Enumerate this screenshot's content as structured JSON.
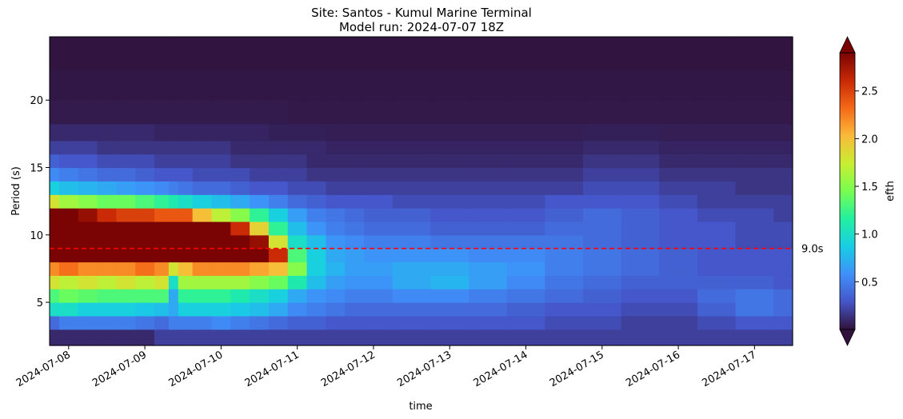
{
  "chart_data": {
    "type": "heatmap",
    "title": "Site: Santos - Kumul Marine Terminal",
    "subtitle": "Model run: 2024-07-07 18Z",
    "xlabel": "time",
    "ylabel": "Period (s)",
    "colorbar_label": "efth",
    "colormap": "turbo",
    "xlim": [
      "2024-07-07 18:00",
      "2024-07-17 12:00"
    ],
    "ylim": [
      1.8,
      24.7
    ],
    "x_ticks": [
      "2024-07-08",
      "2024-07-09",
      "2024-07-10",
      "2024-07-11",
      "2024-07-12",
      "2024-07-13",
      "2024-07-14",
      "2024-07-15",
      "2024-07-16",
      "2024-07-17"
    ],
    "y_ticks": [
      5,
      10,
      15,
      20
    ],
    "colorbar_range": [
      0,
      2.9
    ],
    "colorbar_ticks": [
      0.5,
      1.0,
      1.5,
      2.0,
      2.5
    ],
    "colorbar_tick_labels": [
      "0.5",
      "1.0",
      "1.5",
      "2.0",
      "2.5"
    ],
    "y_tick_labels": [
      "5",
      "10",
      "15",
      "20"
    ],
    "reference_line": {
      "value": 9.0,
      "label": "9.0s",
      "color": "#ff0000",
      "style": "dashed"
    },
    "x_cells": [
      "2024-07-07 18:00",
      "2024-07-08 00:00",
      "2024-07-08 06:00",
      "2024-07-08 12:00",
      "2024-07-08 18:00",
      "2024-07-09 00:00",
      "2024-07-09 06:00",
      "2024-07-09 09:00",
      "2024-07-09 12:00",
      "2024-07-09 18:00",
      "2024-07-10 00:00",
      "2024-07-10 06:00",
      "2024-07-10 12:00",
      "2024-07-10 18:00",
      "2024-07-11 00:00",
      "2024-07-11 06:00",
      "2024-07-11 12:00",
      "2024-07-11 18:00",
      "2024-07-12 00:00",
      "2024-07-12 12:00",
      "2024-07-13 00:00",
      "2024-07-13 12:00",
      "2024-07-14 00:00",
      "2024-07-14 12:00",
      "2024-07-15 00:00",
      "2024-07-15 12:00",
      "2024-07-16 00:00",
      "2024-07-16 12:00",
      "2024-07-17 00:00",
      "2024-07-17 12:00"
    ],
    "y_cells": [
      2.5,
      3.5,
      4.5,
      5.5,
      6.5,
      7.5,
      8.5,
      9.5,
      10.5,
      11.5,
      12.5,
      13.5,
      14.5,
      15.5,
      16.5,
      17.5,
      19,
      21,
      23.5
    ],
    "values": [
      [
        0.1,
        0.1,
        0.1,
        0.1,
        0.1,
        0.1,
        0.2,
        0.2,
        0.2,
        0.2,
        0.2,
        0.2,
        0.2,
        0.2,
        0.2,
        0.2,
        0.2,
        0.2,
        0.2,
        0.2,
        0.2,
        0.2,
        0.2,
        0.2,
        0.2,
        0.2,
        0.2,
        0.2,
        0.2,
        0.2
      ],
      [
        0.4,
        0.5,
        0.5,
        0.5,
        0.5,
        0.45,
        0.4,
        0.5,
        0.5,
        0.5,
        0.55,
        0.5,
        0.45,
        0.4,
        0.35,
        0.35,
        0.3,
        0.3,
        0.3,
        0.3,
        0.3,
        0.3,
        0.3,
        0.25,
        0.25,
        0.2,
        0.2,
        0.25,
        0.3,
        0.3
      ],
      [
        1.0,
        1.0,
        0.9,
        0.9,
        0.9,
        0.85,
        0.8,
        0.7,
        0.9,
        0.9,
        0.9,
        0.85,
        0.8,
        0.7,
        0.55,
        0.5,
        0.45,
        0.4,
        0.4,
        0.4,
        0.4,
        0.4,
        0.35,
        0.3,
        0.3,
        0.25,
        0.25,
        0.35,
        0.45,
        0.4
      ],
      [
        1.3,
        1.4,
        1.35,
        1.3,
        1.3,
        1.3,
        1.3,
        0.7,
        1.2,
        1.2,
        1.2,
        1.1,
        1.0,
        0.9,
        0.7,
        0.6,
        0.55,
        0.5,
        0.5,
        0.55,
        0.55,
        0.5,
        0.45,
        0.4,
        0.35,
        0.3,
        0.3,
        0.4,
        0.45,
        0.4
      ],
      [
        1.8,
        1.7,
        1.8,
        1.7,
        1.8,
        1.7,
        1.8,
        1.0,
        1.6,
        1.6,
        1.6,
        1.6,
        1.5,
        1.4,
        1.1,
        0.8,
        0.65,
        0.6,
        0.6,
        0.7,
        0.75,
        0.65,
        0.55,
        0.45,
        0.4,
        0.35,
        0.35,
        0.35,
        0.35,
        0.3
      ],
      [
        2.2,
        2.3,
        2.2,
        2.2,
        2.2,
        2.3,
        2.2,
        1.8,
        2.0,
        2.2,
        2.2,
        2.2,
        2.1,
        2.0,
        1.5,
        0.9,
        0.75,
        0.65,
        0.65,
        0.7,
        0.7,
        0.65,
        0.6,
        0.5,
        0.45,
        0.4,
        0.35,
        0.3,
        0.3,
        0.3
      ],
      [
        2.9,
        2.9,
        2.9,
        2.9,
        2.9,
        2.9,
        2.9,
        2.9,
        2.9,
        2.9,
        2.9,
        2.9,
        2.9,
        2.6,
        1.3,
        0.9,
        0.7,
        0.65,
        0.6,
        0.6,
        0.6,
        0.55,
        0.55,
        0.5,
        0.45,
        0.4,
        0.35,
        0.3,
        0.3,
        0.3
      ],
      [
        2.9,
        2.9,
        2.9,
        2.9,
        2.9,
        2.9,
        2.9,
        2.9,
        2.9,
        2.9,
        2.9,
        2.9,
        2.8,
        1.8,
        1.0,
        0.8,
        0.6,
        0.55,
        0.5,
        0.5,
        0.45,
        0.45,
        0.45,
        0.45,
        0.4,
        0.35,
        0.3,
        0.3,
        0.25,
        0.25
      ],
      [
        2.9,
        2.9,
        2.9,
        2.9,
        2.9,
        2.9,
        2.9,
        2.9,
        2.9,
        2.9,
        2.9,
        2.6,
        1.9,
        1.2,
        0.8,
        0.6,
        0.5,
        0.45,
        0.4,
        0.4,
        0.35,
        0.35,
        0.35,
        0.4,
        0.4,
        0.35,
        0.3,
        0.3,
        0.25,
        0.25
      ],
      [
        2.9,
        2.9,
        2.8,
        2.6,
        2.5,
        2.5,
        2.4,
        2.4,
        2.4,
        2.0,
        1.7,
        1.5,
        1.2,
        0.9,
        0.65,
        0.5,
        0.45,
        0.4,
        0.35,
        0.35,
        0.3,
        0.3,
        0.3,
        0.35,
        0.4,
        0.35,
        0.3,
        0.25,
        0.25,
        0.2
      ],
      [
        1.8,
        1.6,
        1.5,
        1.4,
        1.4,
        1.3,
        1.2,
        1.1,
        1.0,
        0.9,
        0.8,
        0.7,
        0.6,
        0.5,
        0.4,
        0.35,
        0.3,
        0.3,
        0.3,
        0.25,
        0.25,
        0.25,
        0.25,
        0.3,
        0.3,
        0.3,
        0.25,
        0.2,
        0.2,
        0.2
      ],
      [
        0.9,
        0.8,
        0.75,
        0.7,
        0.65,
        0.6,
        0.55,
        0.5,
        0.45,
        0.4,
        0.4,
        0.35,
        0.3,
        0.3,
        0.25,
        0.25,
        0.2,
        0.2,
        0.2,
        0.2,
        0.2,
        0.2,
        0.2,
        0.2,
        0.25,
        0.25,
        0.2,
        0.2,
        0.15,
        0.15
      ],
      [
        0.55,
        0.5,
        0.45,
        0.4,
        0.4,
        0.35,
        0.3,
        0.3,
        0.3,
        0.25,
        0.25,
        0.25,
        0.2,
        0.2,
        0.2,
        0.15,
        0.15,
        0.15,
        0.15,
        0.15,
        0.15,
        0.15,
        0.15,
        0.15,
        0.2,
        0.2,
        0.15,
        0.15,
        0.15,
        0.15
      ],
      [
        0.35,
        0.3,
        0.3,
        0.25,
        0.25,
        0.25,
        0.2,
        0.2,
        0.2,
        0.2,
        0.2,
        0.15,
        0.15,
        0.15,
        0.15,
        0.1,
        0.1,
        0.1,
        0.1,
        0.1,
        0.1,
        0.1,
        0.1,
        0.1,
        0.15,
        0.15,
        0.1,
        0.1,
        0.1,
        0.1
      ],
      [
        0.2,
        0.2,
        0.2,
        0.15,
        0.15,
        0.15,
        0.15,
        0.15,
        0.15,
        0.15,
        0.15,
        0.1,
        0.1,
        0.1,
        0.1,
        0.1,
        0.08,
        0.08,
        0.08,
        0.08,
        0.08,
        0.08,
        0.08,
        0.08,
        0.1,
        0.1,
        0.08,
        0.08,
        0.08,
        0.08
      ],
      [
        0.1,
        0.1,
        0.1,
        0.1,
        0.1,
        0.1,
        0.08,
        0.08,
        0.08,
        0.08,
        0.08,
        0.08,
        0.08,
        0.06,
        0.06,
        0.06,
        0.05,
        0.05,
        0.05,
        0.05,
        0.05,
        0.05,
        0.05,
        0.05,
        0.06,
        0.06,
        0.05,
        0.05,
        0.05,
        0.05
      ],
      [
        0.04,
        0.04,
        0.04,
        0.04,
        0.04,
        0.04,
        0.04,
        0.04,
        0.04,
        0.04,
        0.04,
        0.04,
        0.04,
        0.04,
        0.03,
        0.03,
        0.03,
        0.03,
        0.03,
        0.03,
        0.03,
        0.03,
        0.03,
        0.03,
        0.03,
        0.03,
        0.03,
        0.03,
        0.03,
        0.03
      ],
      [
        0.02,
        0.02,
        0.02,
        0.02,
        0.02,
        0.02,
        0.02,
        0.02,
        0.02,
        0.02,
        0.02,
        0.02,
        0.02,
        0.02,
        0.02,
        0.02,
        0.02,
        0.02,
        0.02,
        0.02,
        0.02,
        0.02,
        0.02,
        0.02,
        0.02,
        0.02,
        0.02,
        0.02,
        0.02,
        0.02
      ],
      [
        0.01,
        0.01,
        0.01,
        0.01,
        0.01,
        0.01,
        0.01,
        0.01,
        0.01,
        0.01,
        0.01,
        0.01,
        0.01,
        0.01,
        0.01,
        0.01,
        0.01,
        0.01,
        0.01,
        0.01,
        0.01,
        0.01,
        0.01,
        0.01,
        0.01,
        0.01,
        0.01,
        0.01,
        0.01,
        0.01
      ]
    ]
  }
}
